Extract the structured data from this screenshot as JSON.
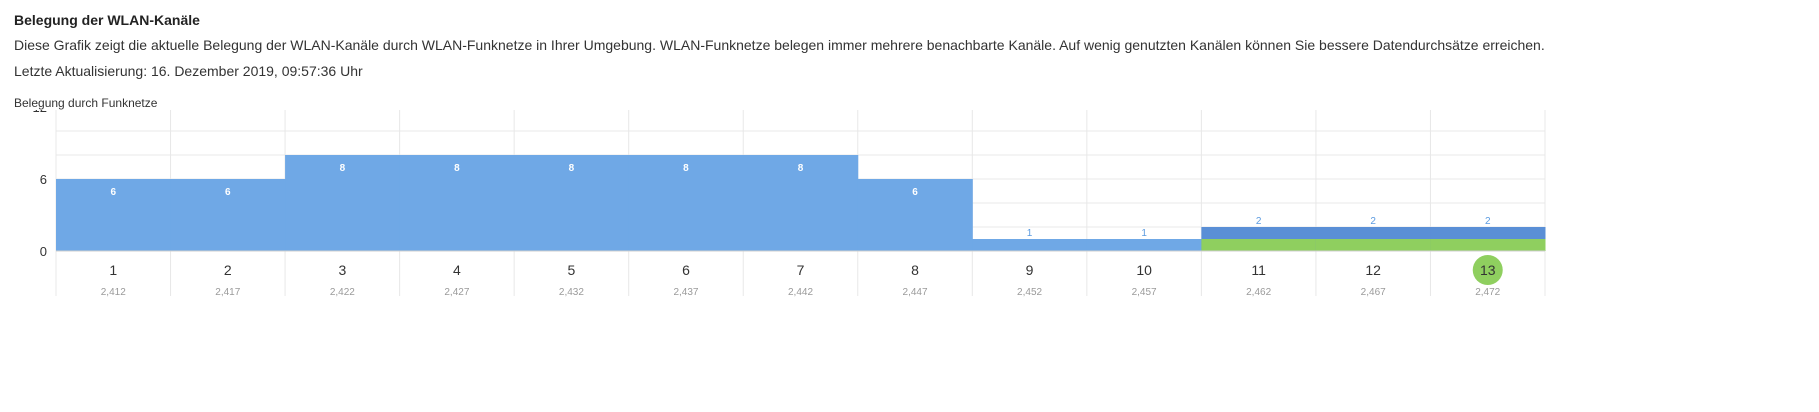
{
  "section": {
    "title": "Belegung der WLAN-Kanäle",
    "description": "Diese Grafik zeigt die aktuelle Belegung der WLAN-Kanäle durch WLAN-Funknetze in Ihrer Umgebung. WLAN-Funknetze belegen immer mehrere benachbarte Kanäle. Auf wenig genutzten Kanälen können Sie bessere Datendurchsätze erreichen.",
    "last_update": "Letzte Aktualisierung: 16. Dezember 2019, 09:57:36 Uhr"
  },
  "colors": {
    "blue": "#6fa8e6",
    "blue_dark": "#5a8fd6",
    "green": "#8fcf5f",
    "grid": "#e8e8e8",
    "label_blue": "#5b9be0"
  },
  "chart_data": {
    "type": "bar",
    "ylabel": "Belegung durch Funknetze",
    "ylim": [
      0,
      12
    ],
    "yticks": [
      0,
      6,
      12
    ],
    "categories": [
      "1",
      "2",
      "3",
      "4",
      "5",
      "6",
      "7",
      "8",
      "9",
      "10",
      "11",
      "12",
      "13"
    ],
    "frequencies": [
      "2,412",
      "2,417",
      "2,422",
      "2,427",
      "2,432",
      "2,437",
      "2,442",
      "2,447",
      "2,452",
      "2,457",
      "2,462",
      "2,467",
      "2,472"
    ],
    "values": [
      6,
      6,
      8,
      8,
      8,
      8,
      8,
      6,
      1,
      1,
      2,
      2,
      2
    ],
    "own_network_channels": [
      "11",
      "12",
      "13"
    ],
    "own_network_level": 1,
    "highlighted_channel": "13",
    "grid": true
  }
}
